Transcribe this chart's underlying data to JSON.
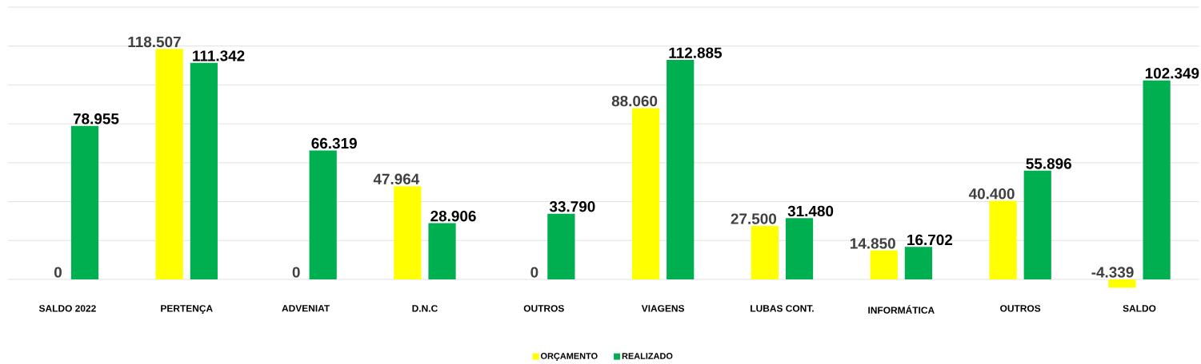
{
  "chart_data": {
    "type": "bar",
    "categories": [
      "SALDO 2022",
      "PERTENÇA",
      "ADVENIAT",
      "D.N.C",
      "OUTROS",
      "VIAGENS",
      "LUBAS CONT.",
      "INFORMÁTICA",
      "OUTROS",
      "SALDO"
    ],
    "series": [
      {
        "name": "ORÇAMENTO",
        "color": "#ffff00",
        "values": [
          0,
          118507,
          0,
          47964,
          0,
          88060,
          27500,
          14850,
          40400,
          -4339
        ],
        "value_labels": [
          "0",
          "118.507",
          "0",
          "47.964",
          "0",
          "88.060",
          "27.500",
          "14.850",
          "40.400",
          "-4.339"
        ]
      },
      {
        "name": "REALIZADO",
        "color": "#00b050",
        "values": [
          78955,
          111342,
          66319,
          28906,
          33790,
          112885,
          31480,
          16702,
          55896,
          102349
        ],
        "value_labels": [
          "78.955",
          "111.342",
          "66.319",
          "28.906",
          "33.790",
          "112.885",
          "31.480",
          "16.702",
          "55.896",
          "102.349"
        ]
      }
    ],
    "yticks": [
      0,
      20000,
      40000,
      60000,
      80000,
      100000,
      120000,
      140000
    ],
    "grid": "y",
    "legend": "bottom",
    "tick_labels": "x"
  }
}
